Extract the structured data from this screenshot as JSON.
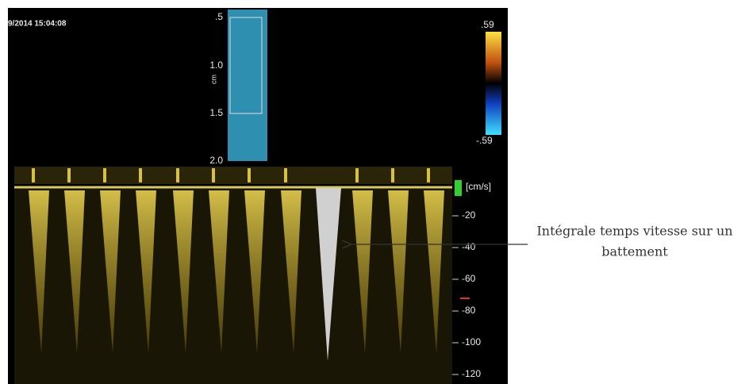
{
  "timestamp": "9/2014 15:04:08",
  "depth_scale": {
    "labels": [
      ".5",
      "1.0",
      "1.5",
      "2.0"
    ],
    "unit": "cm"
  },
  "color_bar": {
    "top": ".59",
    "bottom": "-.59"
  },
  "velocity_scale": {
    "unit": "[cm/s]",
    "labels": [
      "-20",
      "-40",
      "-60",
      "-80",
      "-100",
      "-120"
    ]
  },
  "annotation": {
    "lines": [
      "Intégrale temps vitesse sur un",
      "battement"
    ]
  }
}
